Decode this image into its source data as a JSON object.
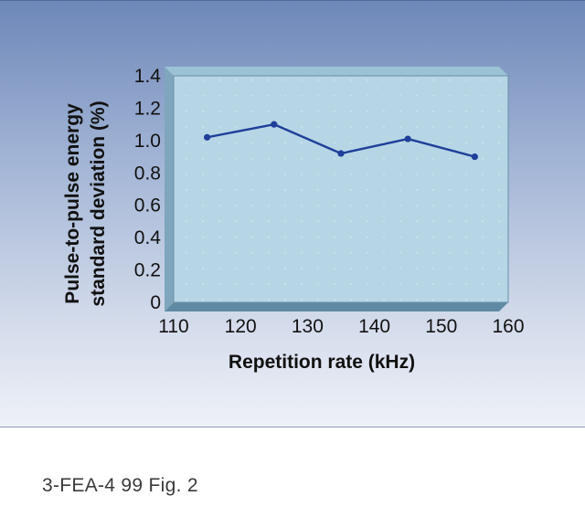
{
  "caption": "3-FEA-4 99 Fig. 2",
  "colors": {
    "plot_bg": "#b6d6e6",
    "plot_wall": "#7fa6bd",
    "plot_floor": "#5f8aa3",
    "line": "#1f3f9a"
  },
  "chart_data": {
    "type": "line",
    "title": "",
    "xlabel": "Repetition rate (kHz)",
    "ylabel_lines": [
      "Pulse-to-pulse energy",
      "standard deviation (%)"
    ],
    "xlim": [
      110,
      160
    ],
    "ylim": [
      0,
      1.4
    ],
    "x_ticks": [
      "110",
      "120",
      "130",
      "140",
      "150",
      "160"
    ],
    "x_tick_values": [
      110,
      120,
      130,
      140,
      150,
      160
    ],
    "y_ticks": [
      "0",
      "0.2",
      "0.4",
      "0.6",
      "0.8",
      "1.0",
      "1.2",
      "1.4"
    ],
    "y_tick_values": [
      0,
      0.2,
      0.4,
      0.6,
      0.8,
      1.0,
      1.2,
      1.4
    ],
    "grid": "dotted",
    "x": [
      115,
      125,
      135,
      145,
      155
    ],
    "y": [
      1.02,
      1.1,
      0.92,
      1.01,
      0.9
    ]
  }
}
